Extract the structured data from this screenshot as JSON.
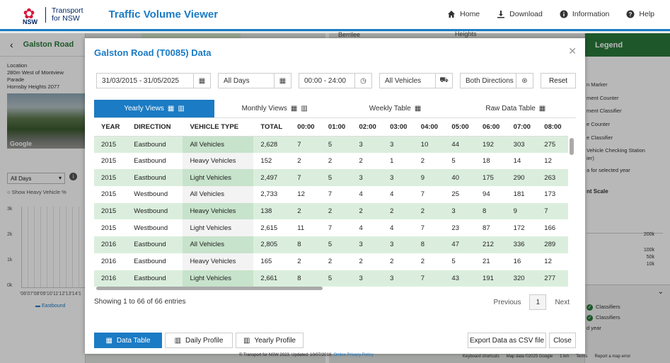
{
  "header": {
    "brand_mark": "NSW",
    "brand_line1": "Transport",
    "brand_line2": "for NSW",
    "app_title": "Traffic Volume Viewer",
    "nav": [
      {
        "label": "Home",
        "icon": "home-icon"
      },
      {
        "label": "Download",
        "icon": "download-icon"
      },
      {
        "label": "Information",
        "icon": "info-icon"
      },
      {
        "label": "Help",
        "icon": "help-icon"
      }
    ],
    "accent": "#1b7bc4"
  },
  "map": {
    "labels": [
      "Berrilee",
      "Heights"
    ]
  },
  "side": {
    "title": "Galston Road",
    "location_label": "Location",
    "location_line1": "280m West of Montview Parade",
    "location_line2": "Hornsby Heights 2077",
    "photo_credit": "Google",
    "day_select": "All Days",
    "show_heavy": "Show Heavy Vehicle %",
    "y_ticks": [
      "3k",
      "2k",
      "1k",
      "0k"
    ],
    "x_ticks": "'06'07'08'09'10'11'12'13'14'1",
    "series_label": "Eastbound"
  },
  "legend": {
    "title": "Legend",
    "items": [
      "n Marker",
      "ment Counter",
      "ment Classifier",
      "e Counter",
      "e Classifier",
      "Vehicle Checking Station",
      "ier)",
      "a for selected year"
    ],
    "scale_title": "nt Scale",
    "scale_values": [
      "200k",
      "100k",
      "50k",
      "10k"
    ],
    "lower_items": [
      "Classifiers",
      "Classifiers",
      "d year"
    ],
    "accent": "#2a7a3b"
  },
  "modal": {
    "title": "Galston Road (T0085) Data",
    "date_range": "31/03/2015 - 31/05/2025",
    "days": "All Days",
    "time_range": "00:00 - 24:00",
    "vehicles": "All Vehicles",
    "directions": "Both Directions",
    "reset_label": "Reset",
    "tabs": [
      {
        "label": "Yearly Views",
        "active": true
      },
      {
        "label": "Monthly Views",
        "active": false
      },
      {
        "label": "Weekly Table",
        "active": false
      },
      {
        "label": "Raw Data Table",
        "active": false
      }
    ],
    "columns": [
      "YEAR",
      "DIRECTION",
      "VEHICLE TYPE",
      "TOTAL",
      "00:00",
      "01:00",
      "02:00",
      "03:00",
      "04:00",
      "05:00",
      "06:00",
      "07:00",
      "08:00"
    ],
    "rows": [
      [
        "2015",
        "Eastbound",
        "All Vehicles",
        "2,628",
        "7",
        "5",
        "3",
        "3",
        "10",
        "44",
        "192",
        "303",
        "275"
      ],
      [
        "2015",
        "Eastbound",
        "Heavy Vehicles",
        "152",
        "2",
        "2",
        "2",
        "1",
        "2",
        "5",
        "18",
        "14",
        "12"
      ],
      [
        "2015",
        "Eastbound",
        "Light Vehicles",
        "2,497",
        "7",
        "5",
        "3",
        "3",
        "9",
        "40",
        "175",
        "290",
        "263"
      ],
      [
        "2015",
        "Westbound",
        "All Vehicles",
        "2,733",
        "12",
        "7",
        "4",
        "4",
        "7",
        "25",
        "94",
        "181",
        "173"
      ],
      [
        "2015",
        "Westbound",
        "Heavy Vehicles",
        "138",
        "2",
        "2",
        "2",
        "2",
        "2",
        "3",
        "8",
        "9",
        "7"
      ],
      [
        "2015",
        "Westbound",
        "Light Vehicles",
        "2,615",
        "11",
        "7",
        "4",
        "4",
        "7",
        "23",
        "87",
        "172",
        "166"
      ],
      [
        "2016",
        "Eastbound",
        "All Vehicles",
        "2,805",
        "8",
        "5",
        "3",
        "3",
        "8",
        "47",
        "212",
        "336",
        "289"
      ],
      [
        "2016",
        "Eastbound",
        "Heavy Vehicles",
        "165",
        "2",
        "2",
        "2",
        "2",
        "2",
        "5",
        "21",
        "16",
        "12"
      ],
      [
        "2016",
        "Eastbound",
        "Light Vehicles",
        "2,661",
        "8",
        "5",
        "3",
        "3",
        "7",
        "43",
        "191",
        "320",
        "277"
      ]
    ],
    "showing": "Showing 1 to 66 of 66 entries",
    "pager": {
      "previous": "Previous",
      "page": "1",
      "next": "Next"
    },
    "footer_buttons": {
      "data_table": "Data Table",
      "daily_profile": "Daily Profile",
      "yearly_profile": "Yearly Profile",
      "export": "Export Data as CSV file",
      "close": "Close"
    }
  },
  "attribution": {
    "text": "© Transport for NSW 2023. Updated: 10/07/2018.",
    "link": "Online Privacy Policy",
    "google": [
      "Keyboard shortcuts",
      "Map data ©2025 Google",
      "1 km",
      "Terms",
      "Report a map error"
    ]
  }
}
